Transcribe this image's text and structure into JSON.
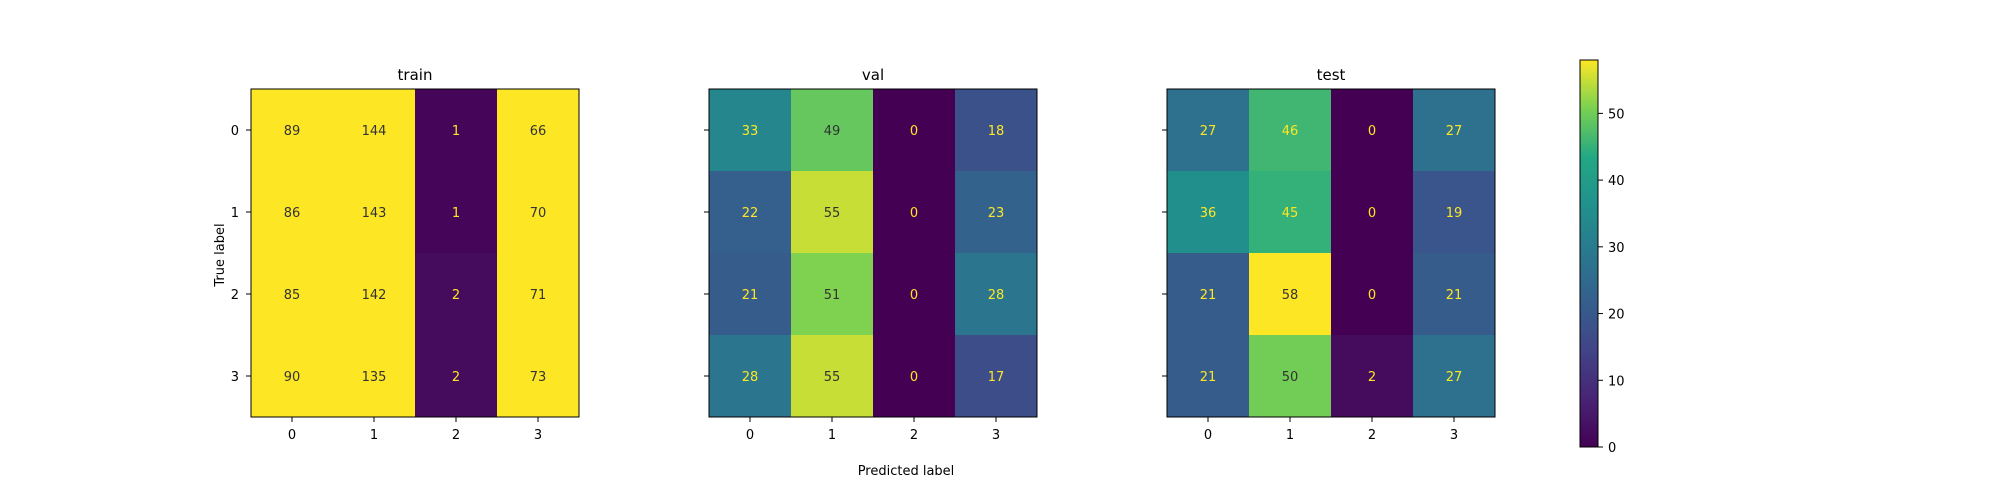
{
  "chart_data": {
    "type": "heatmap",
    "xlabel": "Predicted label",
    "ylabel": "True label",
    "x_tick_labels": [
      "0",
      "1",
      "2",
      "3"
    ],
    "y_tick_labels": [
      "0",
      "1",
      "2",
      "3"
    ],
    "colormap": "viridis",
    "panels": [
      {
        "title": "train",
        "matrix": [
          [
            89,
            144,
            1,
            66
          ],
          [
            86,
            143,
            1,
            70
          ],
          [
            85,
            142,
            2,
            71
          ],
          [
            90,
            135,
            2,
            73
          ]
        ]
      },
      {
        "title": "val",
        "matrix": [
          [
            33,
            49,
            0,
            18
          ],
          [
            22,
            55,
            0,
            23
          ],
          [
            21,
            51,
            0,
            28
          ],
          [
            28,
            55,
            0,
            17
          ]
        ]
      },
      {
        "title": "test",
        "matrix": [
          [
            27,
            46,
            0,
            27
          ],
          [
            36,
            45,
            0,
            19
          ],
          [
            21,
            58,
            0,
            21
          ],
          [
            21,
            50,
            2,
            27
          ]
        ]
      }
    ],
    "colorbar": {
      "range": [
        0,
        58
      ],
      "ticks": [
        0,
        10,
        20,
        30,
        40,
        50
      ]
    }
  }
}
